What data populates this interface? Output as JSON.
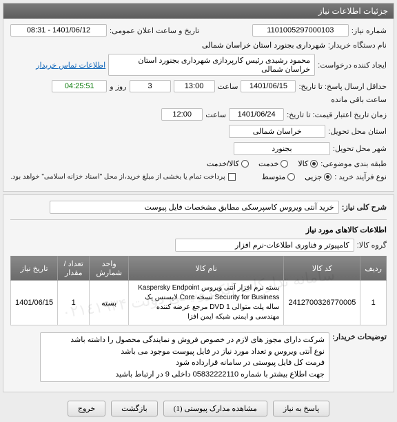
{
  "panel1": {
    "title": "جزئیات اطلاعات نیاز",
    "need_no_label": "شماره نیاز:",
    "need_no": "1101005297000103",
    "announce_label": "تاریخ و ساعت اعلان عمومی:",
    "announce_val": "1401/06/12 - 08:31",
    "buyer_label": "نام دستگاه خریدار:",
    "buyer_val": "شهرداری بجنورد استان خراسان شمالی",
    "creator_label": "ایجاد کننده درخواست:",
    "creator_val": "محمود رشیدی رئیس کارپردازی شهرداری بجنورد استان خراسان شمالی",
    "contact_link": "اطلاعات تماس خریدار",
    "deadline_label": "حداقل ارسال پاسخ: تا تاریخ:",
    "deadline_date": "1401/06/15",
    "deadline_time_label": "ساعت",
    "deadline_time": "13:00",
    "days_label": "روز و",
    "days_val": "3",
    "time_left": "04:25:51",
    "time_left_label": "ساعت باقی مانده",
    "validity_label": "زمان تاریخ اعتبار قیمت: تا تاریخ:",
    "validity_date": "1401/06/24",
    "validity_time_label": "ساعت",
    "validity_time": "12:00",
    "province_label": "استان محل تحویل:",
    "province_val": "خراسان شمالی",
    "city_label": "شهر محل تحویل:",
    "city_val": "بجنورد",
    "category_label": "طبقه بندی موضوعی:",
    "category_opts": [
      "کالا",
      "خدمت",
      "کالا/خدمت"
    ],
    "category_selected": 0,
    "process_label": "نوع فرآیند خرید :",
    "process_opts": [
      "جزیی",
      "متوسط"
    ],
    "process_selected": 0,
    "payment_check_label": "پرداخت تمام یا بخشی از مبلغ خرید،از محل \"اسناد خزانه اسلامی\" خواهد بود."
  },
  "panel2": {
    "desc_label": "شرح کلی نیاز:",
    "desc_val": "خرید آنتی ویروس کاسپرسکی مطابق مشخصات فایل پیوست",
    "goods_header": "اطلاعات کالاهای مورد نیاز",
    "group_label": "گروه کالا:",
    "group_val": "کامپیوتر و فناوری اطلاعات-نرم افزار",
    "table": {
      "headers": [
        "ردیف",
        "کد کالا",
        "نام کالا",
        "واحد شمارش",
        "تعداد / مقدار",
        "تاریخ نیاز"
      ],
      "rows": [
        [
          "1",
          "2412700326770005",
          "بسته نرم افزار آنتی ویروس Kaspersky Endpoint Security for Business نسخه Core لایسنس یک ساله پلت متوالی 1 DVD مرجع عرضه کننده مهندسی و ایمنی شبکه ایمن افزا",
          "بسته",
          "1",
          "1401/06/15"
        ]
      ]
    },
    "notes_label": "توضیحات خریدار:",
    "notes_val": "شرکت دارای مجوز های لازم در خصوص فروش و نمایندگی محصول را داشته باشد\nنوع آنتی ویروس و تعداد مورد نیاز در فایل پیوست موجود می باشد\nفرمت کل فایل پیوستی در سامانه قرارداده شود\nجهت اطلاع بیشتر با شماره 05832222110 داخلی 9 در ارتباط باشید"
  },
  "buttons": {
    "respond": "پاسخ به نیاز",
    "attachments": "مشاهده مدارک پیوستی (1)",
    "back": "بازگشت",
    "exit": "خروج"
  },
  "watermark": "سامانه تدارکات الکترونیکی دولت ۰۲۱٤۱۹۳۴"
}
